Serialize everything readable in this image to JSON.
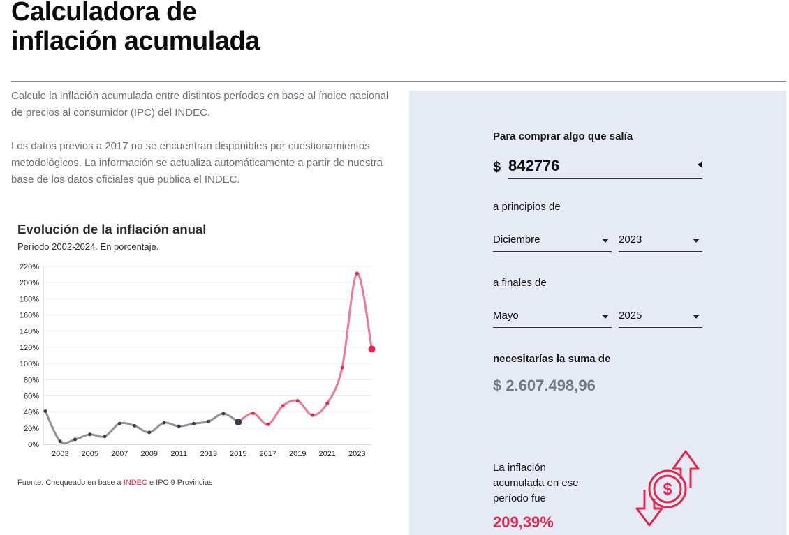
{
  "page": {
    "title_line1": "Calculadora de",
    "title_line2": "inflación acumulada",
    "intro_p1": "Calculo la inflación acumulada entre distintos períodos en base al índice nacional de precios al consumidor (IPC) del INDEC.",
    "intro_p2": "Los datos previos a 2017 no se encuentran disponibles por cuestionamientos metodológicos. La información se actualiza automáticamente a partir de nuestra base de los datos oficiales que publica el INDEC."
  },
  "calculator": {
    "buy_label": "Para comprar algo que salía",
    "currency_symbol": "$",
    "amount": "842776",
    "start_label": "a principios de",
    "start_month": "Diciembre",
    "start_year": "2023",
    "end_label": "a finales de",
    "end_month": "Mayo",
    "end_year": "2025",
    "need_label": "necesitarías la suma de",
    "result": "$ 2.607.498,96",
    "accumulated_text": "La inflación acumulada en ese período fue",
    "accumulated_value": "209,39%",
    "icon": "dollar-exchange-arrows-icon"
  },
  "chart_data": {
    "type": "line",
    "title": "Evolución de la inflación anual",
    "subtitle": "Período 2002-2024. En porcentaje.",
    "ylim": [
      0,
      220
    ],
    "y_ticks": [
      "0%",
      "20%",
      "40%",
      "60%",
      "80%",
      "100%",
      "120%",
      "140%",
      "160%",
      "180%",
      "200%",
      "220%"
    ],
    "x_ticks": [
      "2003",
      "2005",
      "2007",
      "2009",
      "2011",
      "2013",
      "2015",
      "2017",
      "2019",
      "2021",
      "2023"
    ],
    "grid": true,
    "colors": {
      "pre_2015": "#8f9298",
      "post_2015": "#ef7892",
      "highlight": "#e0294f",
      "dark_point": "#3a3d47"
    },
    "series": [
      {
        "x": [
          2002,
          2003,
          2004,
          2005,
          2006,
          2007,
          2008,
          2009,
          2010,
          2011,
          2012,
          2013,
          2014,
          2015
        ],
        "values": [
          41,
          3.7,
          6.1,
          12.3,
          9.8,
          25.7,
          23,
          14.8,
          26.6,
          22.3,
          25.6,
          28.3,
          38,
          27.5
        ]
      },
      {
        "x": [
          2015,
          2016,
          2017,
          2018,
          2019,
          2020,
          2021,
          2022,
          2023,
          2024
        ],
        "values": [
          27.5,
          38.5,
          24.8,
          47.6,
          53.8,
          36.1,
          50.9,
          94.8,
          211.4,
          117.8
        ]
      }
    ]
  },
  "source": {
    "prefix": "Fuente: Chequeado en base a ",
    "link": "INDEC",
    "suffix": " e IPC 9 Provincias"
  }
}
